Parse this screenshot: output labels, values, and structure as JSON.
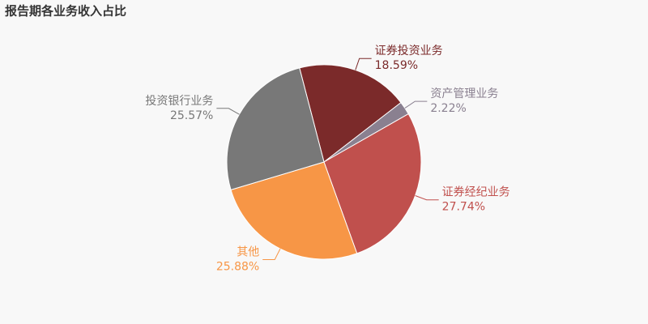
{
  "chart_data": {
    "type": "pie",
    "title": "报告期各业务收入占比",
    "categories": [
      "证券投资业务",
      "资产管理业务",
      "证券经纪业务",
      "其他",
      "投资银行业务"
    ],
    "values": [
      18.59,
      2.22,
      27.74,
      25.88,
      25.57
    ],
    "value_labels": [
      "18.59%",
      "2.22%",
      "27.74%",
      "25.88%",
      "25.57%"
    ],
    "colors": [
      "#7b2a2a",
      "#8a8090",
      "#c0504d",
      "#f79646",
      "#787878"
    ]
  }
}
